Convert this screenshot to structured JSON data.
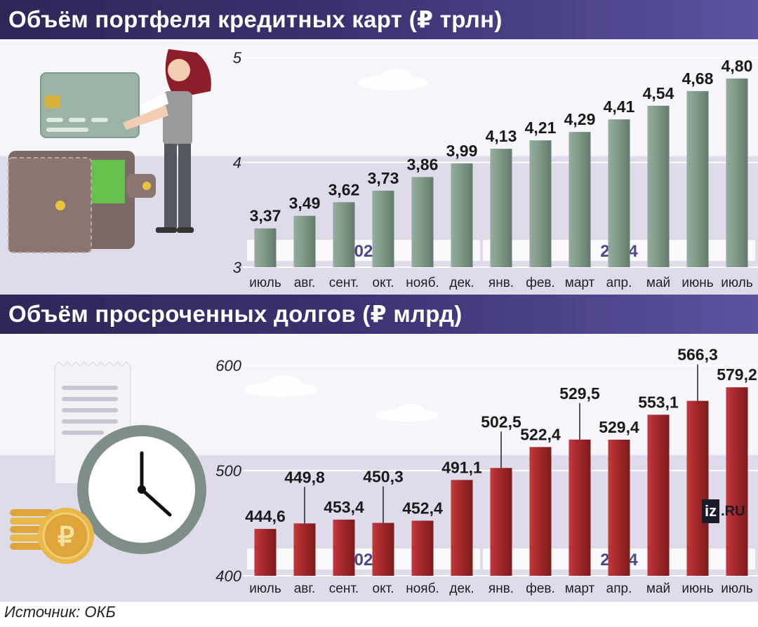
{
  "titles": {
    "top": "Объём портфеля кредитных карт (₽ трлн)",
    "bottom": "Объём просроченных долгов (₽ млрд)"
  },
  "footer": "Источник: ОКБ",
  "logo": {
    "iz": "iz",
    "ru": ".RU"
  },
  "colors": {
    "title_bar": "#3a3270",
    "bar_top": "#7f9a8a",
    "bar_bottom": "#a0262a",
    "year_label": "#4a4a8a"
  },
  "chart_data": [
    {
      "type": "bar",
      "title": "Объём портфеля кредитных карт (₽ трлн)",
      "categories": [
        "июль",
        "авг.",
        "сент.",
        "окт.",
        "нояб.",
        "дек.",
        "янв.",
        "фев.",
        "март",
        "апр.",
        "май",
        "июнь",
        "июль"
      ],
      "values": [
        3.37,
        3.49,
        3.62,
        3.73,
        3.86,
        3.99,
        4.13,
        4.21,
        4.29,
        4.41,
        4.54,
        4.68,
        4.8
      ],
      "value_labels": [
        "3,37",
        "3,49",
        "3,62",
        "3,73",
        "3,86",
        "3,99",
        "4,13",
        "4,21",
        "4,29",
        "4,41",
        "4,54",
        "4,68",
        "4,80"
      ],
      "yticks": [
        "3",
        "4",
        "5"
      ],
      "ylim": [
        3,
        5
      ],
      "years": [
        {
          "label": "2023",
          "from": 0,
          "to": 5
        },
        {
          "label": "2024",
          "from": 6,
          "to": 12
        }
      ],
      "grid": true
    },
    {
      "type": "bar",
      "title": "Объём просроченных долгов (₽ млрд)",
      "categories": [
        "июль",
        "авг.",
        "сент.",
        "окт.",
        "нояб.",
        "дек.",
        "янв.",
        "фев.",
        "март",
        "апр.",
        "май",
        "июнь",
        "июль"
      ],
      "values": [
        444.6,
        449.8,
        453.4,
        450.3,
        452.4,
        491.1,
        502.5,
        522.4,
        529.5,
        529.4,
        553.1,
        566.3,
        579.2
      ],
      "value_labels": [
        "444,6",
        "449,8",
        "453,4",
        "450,3",
        "452,4",
        "491,1",
        "502,5",
        "522,4",
        "529,5",
        "529,4",
        "553,1",
        "566,3",
        "579,2"
      ],
      "yticks": [
        "400",
        "500",
        "600"
      ],
      "ylim": [
        400,
        600
      ],
      "years": [
        {
          "label": "2023",
          "from": 0,
          "to": 5
        },
        {
          "label": "2024",
          "from": 6,
          "to": 12
        }
      ],
      "grid": true
    }
  ]
}
